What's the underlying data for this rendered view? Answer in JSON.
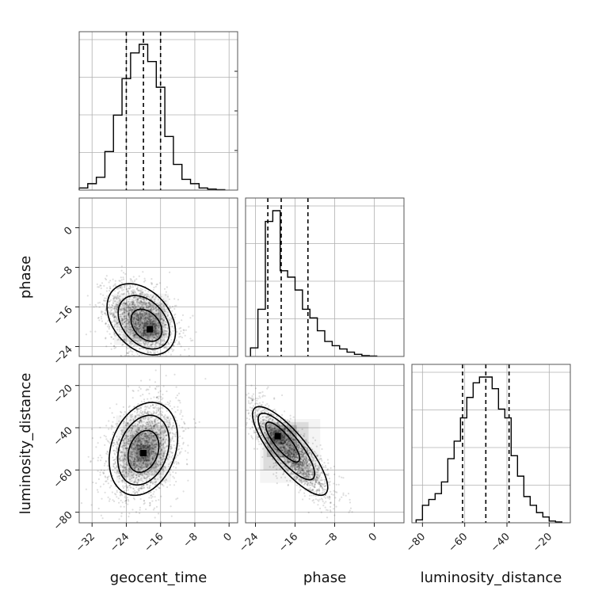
{
  "chart_data": {
    "type": "corner",
    "parameters": [
      {
        "key": "geocent_time",
        "label": "geocent_time",
        "range": [
          -35,
          2
        ],
        "ticks": [
          -32,
          -24,
          -16,
          -8,
          0
        ],
        "tick_labels": [
          "−32",
          "−24",
          "−16",
          "−8",
          "0"
        ],
        "quantiles": [
          -24.0,
          -20.0,
          -16.0
        ],
        "hist_edges": [
          -35,
          -33,
          -31,
          -29,
          -27,
          -25,
          -23,
          -21,
          -19,
          -17,
          -15,
          -13,
          -11,
          -9,
          -7,
          -5,
          -3,
          -1
        ],
        "hist_counts": [
          0.01,
          0.03,
          0.06,
          0.18,
          0.35,
          0.52,
          0.64,
          0.68,
          0.6,
          0.48,
          0.25,
          0.12,
          0.05,
          0.03,
          0.01,
          0.005,
          0.002
        ]
      },
      {
        "key": "phase",
        "label": "phase",
        "range": [
          -26,
          6
        ],
        "ticks": [
          -24,
          -16,
          -8,
          0
        ],
        "tick_labels": [
          "−24",
          "−16",
          "−8",
          "0"
        ],
        "quantiles": [
          -21.5,
          -18.8,
          -13.4
        ],
        "hist_edges": [
          -25,
          -23.5,
          -22,
          -20.5,
          -19,
          -17.5,
          -16,
          -14.5,
          -13,
          -11.5,
          -10,
          -8.5,
          -7,
          -5.5,
          -4,
          -2.5,
          -1,
          0.5
        ],
        "hist_counts": [
          0.04,
          0.22,
          0.63,
          0.68,
          0.4,
          0.37,
          0.31,
          0.22,
          0.18,
          0.12,
          0.07,
          0.05,
          0.035,
          0.02,
          0.01,
          0.004,
          0.002
        ]
      },
      {
        "key": "luminosity_distance",
        "label": "luminosity_distance",
        "range": [
          -85,
          -10
        ],
        "ticks": [
          -80,
          -60,
          -40,
          -20
        ],
        "tick_labels": [
          "−80",
          "−60",
          "−40",
          "−20"
        ],
        "quantiles": [
          -61.0,
          -50.0,
          -39.0
        ],
        "hist_edges": [
          -83,
          -80,
          -77,
          -74,
          -71,
          -68,
          -65,
          -62,
          -59,
          -56,
          -53,
          -50,
          -47,
          -44,
          -41,
          -38,
          -35,
          -32,
          -29,
          -26,
          -23,
          -20,
          -17,
          -14
        ],
        "hist_counts": [
          0.01,
          0.06,
          0.08,
          0.1,
          0.14,
          0.22,
          0.28,
          0.36,
          0.43,
          0.48,
          0.5,
          0.5,
          0.46,
          0.39,
          0.36,
          0.23,
          0.16,
          0.09,
          0.06,
          0.035,
          0.02,
          0.006,
          0.003
        ]
      }
    ],
    "pairs": [
      {
        "x": "geocent_time",
        "y": "phase",
        "center": [
          -20.5,
          -18.5
        ],
        "sigma": [
          4.0,
          3.6
        ],
        "rho": -0.35,
        "mode": [
          -18.5,
          -20.5
        ],
        "n_points": 2200
      },
      {
        "x": "geocent_time",
        "y": "luminosity_distance",
        "center": [
          -20.0,
          -50.0
        ],
        "sigma": [
          4.0,
          11.0
        ],
        "rho": 0.25,
        "mode": [
          -20.0,
          -52.0
        ],
        "n_points": 2400
      },
      {
        "x": "phase",
        "y": "luminosity_distance",
        "center": [
          -17.0,
          -51.0
        ],
        "sigma": [
          3.8,
          10.5
        ],
        "rho": -0.82,
        "mode": [
          -19.5,
          -44.0
        ],
        "n_points": 2400
      }
    ],
    "grid": true
  }
}
